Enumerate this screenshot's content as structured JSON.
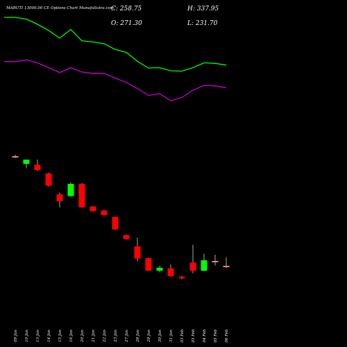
{
  "header": {
    "title": "MARUTI 13000.00 CE Options Chart MunafaSutra.com",
    "close": "C: 258.75",
    "open": "O: 271.30",
    "high": "H: 337.95",
    "low": "L: 231.70"
  },
  "colors": {
    "background": "#000000",
    "upper_line": "#00ff00",
    "lower_line": "#cc00cc",
    "bull": "#00ff00",
    "bear": "#ff0000",
    "neutral": "#ff8080",
    "text": "#ffffff"
  },
  "chart_data": {
    "type": "candlestick",
    "title": "MARUTI 13000.00 CE Options Chart MunafaSutra.com",
    "xlabel": "",
    "ylabel": "",
    "grid": false,
    "ylim": [
      0,
      1900
    ],
    "x": [
      "09 Jan",
      "10 Jan",
      "13 Jan",
      "14 Jan",
      "15 Jan",
      "16 Jan",
      "20 Jan",
      "21 Jan",
      "22 Jan",
      "23 Jan",
      "27 Jan",
      "28 Jan",
      "29 Jan",
      "30 Jan",
      "31 Jan",
      "03 Feb",
      "03 Feb",
      "04 Feb",
      "05 Feb",
      "06 Feb"
    ],
    "candles": [
      {
        "date": "09 Jan",
        "open": 1000,
        "high": 1008,
        "low": 990,
        "close": 993,
        "color": "neutral"
      },
      {
        "date": "10 Jan",
        "open": 955,
        "high": 965,
        "low": 930,
        "close": 980,
        "color": "bull"
      },
      {
        "date": "13 Jan",
        "open": 950,
        "high": 980,
        "low": 915,
        "close": 920,
        "color": "bear"
      },
      {
        "date": "14 Jan",
        "open": 900,
        "high": 905,
        "low": 825,
        "close": 830,
        "color": "bear"
      },
      {
        "date": "15 Jan",
        "open": 780,
        "high": 790,
        "low": 705,
        "close": 740,
        "color": "bear"
      },
      {
        "date": "16 Jan",
        "open": 770,
        "high": 848,
        "low": 765,
        "close": 840,
        "color": "bull"
      },
      {
        "date": "20 Jan",
        "open": 840,
        "high": 845,
        "low": 702,
        "close": 705,
        "color": "bear"
      },
      {
        "date": "21 Jan",
        "open": 710,
        "high": 712,
        "low": 680,
        "close": 683,
        "color": "bear"
      },
      {
        "date": "22 Jan",
        "open": 687,
        "high": 690,
        "low": 658,
        "close": 660,
        "color": "bear"
      },
      {
        "date": "23 Jan",
        "open": 650,
        "high": 652,
        "low": 575,
        "close": 578,
        "color": "bear"
      },
      {
        "date": "27 Jan",
        "open": 545,
        "high": 548,
        "low": 520,
        "close": 522,
        "color": "bear"
      },
      {
        "date": "28 Jan",
        "open": 480,
        "high": 530,
        "low": 395,
        "close": 410,
        "color": "bear"
      },
      {
        "date": "29 Jan",
        "open": 412,
        "high": 415,
        "low": 338,
        "close": 340,
        "color": "bear"
      },
      {
        "date": "30 Jan",
        "open": 340,
        "high": 368,
        "low": 330,
        "close": 357,
        "color": "bull"
      },
      {
        "date": "31 Jan",
        "open": 353,
        "high": 375,
        "low": 305,
        "close": 308,
        "color": "bear"
      },
      {
        "date": "03 Feb",
        "open": 305,
        "high": 310,
        "low": 290,
        "close": 296,
        "color": "bear"
      },
      {
        "date": "03 Feb",
        "open": 387,
        "high": 490,
        "low": 325,
        "close": 340,
        "color": "bear"
      },
      {
        "date": "04 Feb",
        "open": 340,
        "high": 437,
        "low": 336,
        "close": 400,
        "color": "bull"
      },
      {
        "date": "05 Feb",
        "open": 396,
        "high": 432,
        "low": 370,
        "close": 390,
        "color": "neutral"
      },
      {
        "date": "06 Feb",
        "open": 368,
        "high": 417,
        "low": 355,
        "close": 360,
        "color": "neutral"
      }
    ],
    "series": [
      {
        "type": "line",
        "color": "#00ff00",
        "x": [
          "08 Jan",
          "09 Jan",
          "10 Jan",
          "13 Jan",
          "14 Jan",
          "15 Jan",
          "16 Jan",
          "20 Jan",
          "21 Jan",
          "22 Jan",
          "23 Jan",
          "27 Jan",
          "28 Jan",
          "29 Jan",
          "30 Jan",
          "31 Jan",
          "03 Feb",
          "03 Feb",
          "04 Feb",
          "05 Feb",
          "06 Feb"
        ],
        "values": [
          1800,
          1800,
          1790,
          1760,
          1725,
          1680,
          1730,
          1665,
          1658,
          1648,
          1615,
          1598,
          1547,
          1508,
          1510,
          1492,
          1490,
          1510,
          1538,
          1535,
          1525
        ]
      },
      {
        "type": "line",
        "color": "#cc00cc",
        "x": [
          "08 Jan",
          "09 Jan",
          "10 Jan",
          "13 Jan",
          "14 Jan",
          "15 Jan",
          "16 Jan",
          "20 Jan",
          "21 Jan",
          "22 Jan",
          "23 Jan",
          "27 Jan",
          "28 Jan",
          "29 Jan",
          "30 Jan",
          "31 Jan",
          "03 Feb",
          "03 Feb",
          "04 Feb",
          "05 Feb",
          "06 Feb"
        ],
        "values": [
          1545,
          1545,
          1555,
          1538,
          1510,
          1482,
          1510,
          1485,
          1477,
          1477,
          1450,
          1425,
          1390,
          1350,
          1360,
          1320,
          1338,
          1380,
          1408,
          1405,
          1395
        ]
      }
    ]
  }
}
